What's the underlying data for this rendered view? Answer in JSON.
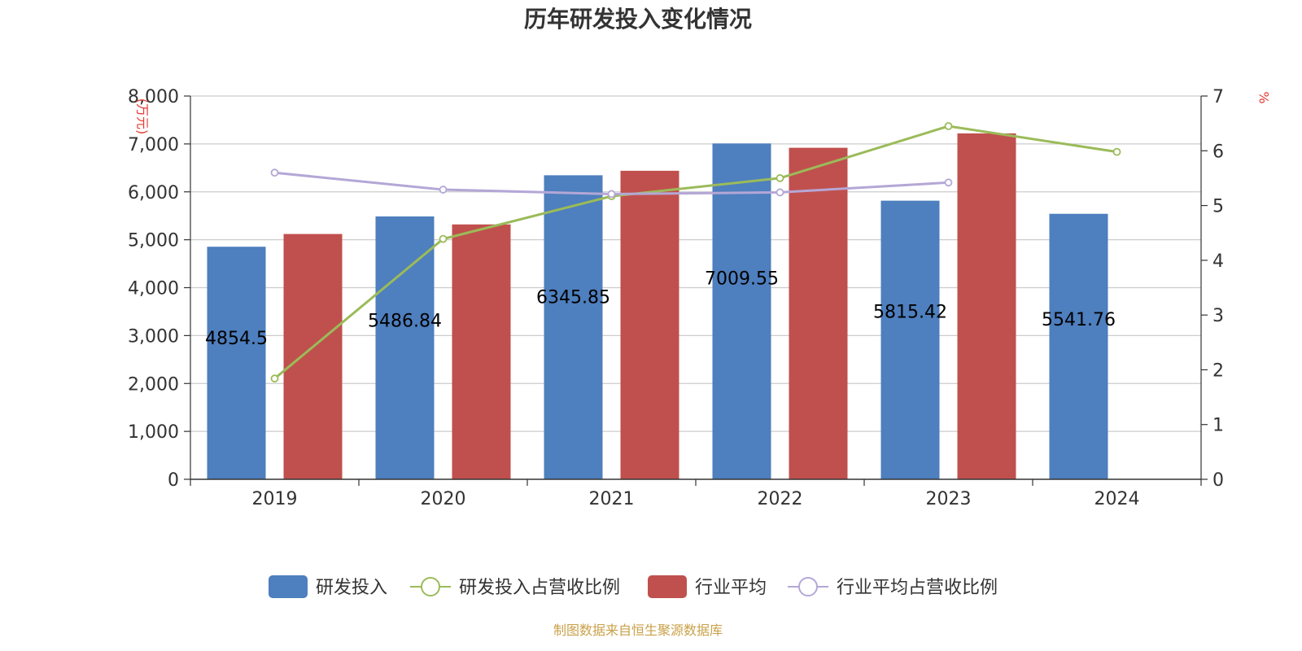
{
  "chart_data": {
    "type": "bar",
    "title": "历年研发投入变化情况",
    "categories": [
      "2019",
      "2020",
      "2021",
      "2022",
      "2023",
      "2024"
    ],
    "y_left": {
      "label": "(万元)",
      "ylim": [
        0,
        8000
      ],
      "ticks": [
        "0",
        "1,000",
        "2,000",
        "3,000",
        "4,000",
        "5,000",
        "6,000",
        "7,000",
        "8,000"
      ]
    },
    "y_right": {
      "label": "%",
      "ylim": [
        0,
        7
      ],
      "ticks": [
        "0",
        "1",
        "2",
        "3",
        "4",
        "5",
        "6",
        "7"
      ]
    },
    "series": [
      {
        "name": "研发投入",
        "type": "bar",
        "axis": "left",
        "color": "#4e7fbe",
        "values": [
          4854.5,
          5486.84,
          6345.85,
          7009.55,
          5815.42,
          5541.76
        ],
        "labels": [
          "4854.5",
          "5486.84",
          "6345.85",
          "7009.55",
          "5815.42",
          "5541.76"
        ]
      },
      {
        "name": "研发投入占营收比例",
        "type": "line",
        "axis": "right",
        "color": "#9bbb59",
        "values": [
          1.84,
          4.39,
          5.17,
          5.5,
          6.45,
          5.98
        ]
      },
      {
        "name": "行业平均",
        "type": "bar",
        "axis": "left",
        "color": "#c0504d",
        "values": [
          5120,
          5320,
          6440,
          6920,
          7220,
          null
        ]
      },
      {
        "name": "行业平均占营收比例",
        "type": "line",
        "axis": "right",
        "color": "#b4a7d6",
        "values": [
          5.6,
          5.29,
          5.21,
          5.24,
          5.42,
          null
        ]
      }
    ],
    "grid": true,
    "legend_position": "bottom"
  },
  "source_note": "制图数据来自恒生聚源数据库"
}
